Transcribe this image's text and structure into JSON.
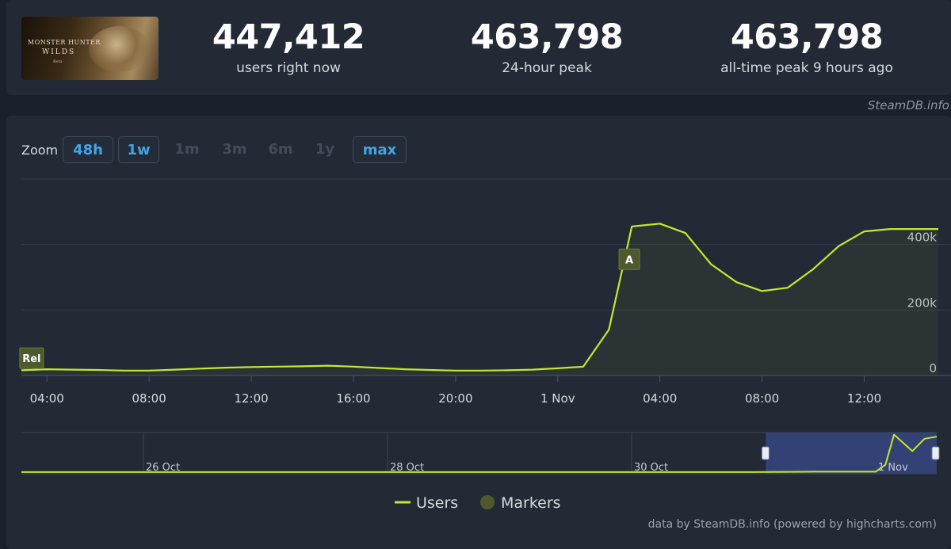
{
  "game": {
    "logo_title": "MONSTER HUNTER",
    "logo_sub": "WILDS",
    "logo_small": "Beta"
  },
  "stats": [
    {
      "value": "447,412",
      "label": "users right now"
    },
    {
      "value": "463,798",
      "label": "24-hour peak"
    },
    {
      "value": "463,798",
      "label": "all-time peak 9 hours ago"
    }
  ],
  "credit_top": "SteamDB.info",
  "zoom": {
    "label": "Zoom",
    "buttons": [
      {
        "label": "48h",
        "active": true
      },
      {
        "label": "1w",
        "active": true
      },
      {
        "label": "1m",
        "active": false
      },
      {
        "label": "3m",
        "active": false
      },
      {
        "label": "6m",
        "active": false
      },
      {
        "label": "1y",
        "active": false
      },
      {
        "label": "max",
        "active": true
      }
    ]
  },
  "colors": {
    "line": "#c3e82d",
    "marker": "#4e5a2e",
    "panel": "#232a36",
    "navigator_mask": "#3a4a8a"
  },
  "chart_data": {
    "type": "line",
    "title": "",
    "xlabel": "",
    "ylabel": "",
    "series": [
      {
        "name": "Users",
        "x": [
          3.0,
          4.0,
          5.0,
          6.0,
          7.0,
          8.0,
          9.0,
          10.0,
          11.0,
          12.0,
          13.0,
          14.0,
          15.0,
          16.0,
          17.0,
          18.0,
          19.0,
          20.0,
          21.0,
          22.0,
          23.0,
          24.0,
          25.0,
          26.0,
          26.9,
          28.0,
          29.0,
          30.0,
          31.0,
          32.0,
          33.0,
          34.0,
          35.0,
          36.0,
          37.0,
          38.0,
          38.9
        ],
        "y": [
          16000,
          19000,
          18000,
          17000,
          15000,
          15000,
          18000,
          21000,
          24000,
          26000,
          27000,
          28000,
          30000,
          27000,
          23000,
          19000,
          17000,
          15000,
          15000,
          16000,
          18000,
          22000,
          27000,
          140000,
          455000,
          463798,
          435000,
          340000,
          285000,
          258000,
          268000,
          325000,
          395000,
          440000,
          447412,
          447412,
          447412
        ]
      }
    ],
    "x_tick_labels": [
      "04:00",
      "08:00",
      "12:00",
      "16:00",
      "20:00",
      "1 Nov",
      "04:00",
      "08:00",
      "12:00"
    ],
    "x_tick_positions": [
      4,
      8,
      12,
      16,
      20,
      24,
      28,
      32,
      36
    ],
    "y_ticks": [
      0,
      200000,
      400000
    ],
    "y_tick_labels": [
      "0",
      "200k",
      "400k"
    ],
    "xlim": [
      3.0,
      38.9
    ],
    "ylim": [
      0,
      600000
    ],
    "grid": true,
    "markers": [
      {
        "label": "Rel",
        "x": 3.4,
        "y": 53000
      },
      {
        "label": "A",
        "x": 26.8,
        "y": 355000
      }
    ],
    "navigator": {
      "tick_labels": [
        "26 Oct",
        "28 Oct",
        "30 Oct",
        "1 Nov"
      ],
      "tick_positions": [
        1,
        3,
        5,
        7
      ],
      "xlim": [
        0.0,
        7.5
      ],
      "window": [
        6.1,
        7.5
      ],
      "x": [
        0.0,
        1.0,
        2.0,
        3.0,
        4.0,
        5.0,
        6.0,
        6.5,
        7.0,
        7.08,
        7.15,
        7.3,
        7.4,
        7.5
      ],
      "y": [
        0.04,
        0.04,
        0.04,
        0.04,
        0.04,
        0.04,
        0.04,
        0.05,
        0.05,
        0.22,
        0.95,
        0.55,
        0.85,
        0.9
      ]
    },
    "legend": [
      {
        "label": "Users",
        "kind": "line"
      },
      {
        "label": "Markers",
        "kind": "dot"
      }
    ],
    "legend_position": "bottom-center"
  },
  "credit_bottom": "data by SteamDB.info (powered by highcharts.com)"
}
